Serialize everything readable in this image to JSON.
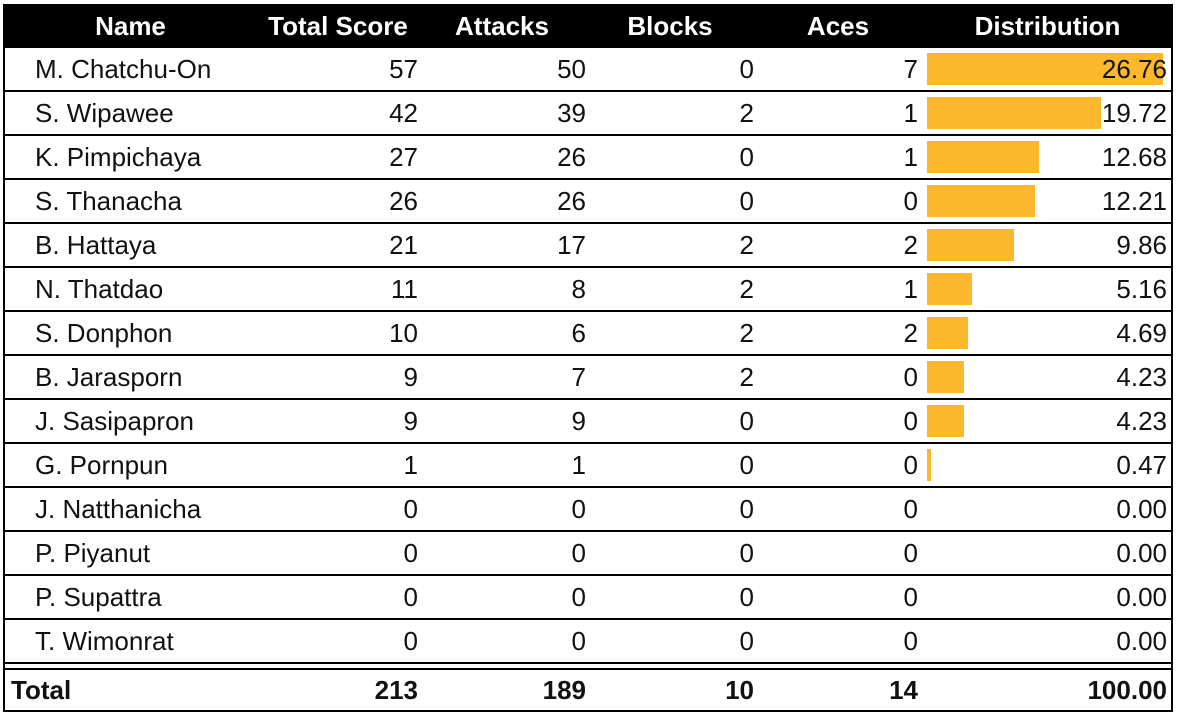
{
  "headers": {
    "name": "Name",
    "total": "Total Score",
    "attacks": "Attacks",
    "blocks": "Blocks",
    "aces": "Aces",
    "distribution": "Distribution"
  },
  "chart_data": {
    "type": "table",
    "bar_color": "#fbb82c",
    "bar_max": 27,
    "rows": [
      {
        "name": "M. Chatchu-On",
        "total": "57",
        "attacks": "50",
        "blocks": "0",
        "aces": "7",
        "distribution": "26.76"
      },
      {
        "name": "S. Wipawee",
        "total": "42",
        "attacks": "39",
        "blocks": "2",
        "aces": "1",
        "distribution": "19.72"
      },
      {
        "name": "K. Pimpichaya",
        "total": "27",
        "attacks": "26",
        "blocks": "0",
        "aces": "1",
        "distribution": "12.68"
      },
      {
        "name": "S. Thanacha",
        "total": "26",
        "attacks": "26",
        "blocks": "0",
        "aces": "0",
        "distribution": "12.21"
      },
      {
        "name": "B. Hattaya",
        "total": "21",
        "attacks": "17",
        "blocks": "2",
        "aces": "2",
        "distribution": "9.86"
      },
      {
        "name": "N. Thatdao",
        "total": "11",
        "attacks": "8",
        "blocks": "2",
        "aces": "1",
        "distribution": "5.16"
      },
      {
        "name": "S. Donphon",
        "total": "10",
        "attacks": "6",
        "blocks": "2",
        "aces": "2",
        "distribution": "4.69"
      },
      {
        "name": "B. Jarasporn",
        "total": "9",
        "attacks": "7",
        "blocks": "2",
        "aces": "0",
        "distribution": "4.23"
      },
      {
        "name": "J. Sasipapron",
        "total": "9",
        "attacks": "9",
        "blocks": "0",
        "aces": "0",
        "distribution": "4.23"
      },
      {
        "name": "G. Pornpun",
        "total": "1",
        "attacks": "1",
        "blocks": "0",
        "aces": "0",
        "distribution": "0.47"
      },
      {
        "name": "J. Natthanicha",
        "total": "0",
        "attacks": "0",
        "blocks": "0",
        "aces": "0",
        "distribution": "0.00"
      },
      {
        "name": "P. Piyanut",
        "total": "0",
        "attacks": "0",
        "blocks": "0",
        "aces": "0",
        "distribution": "0.00"
      },
      {
        "name": "P. Supattra",
        "total": "0",
        "attacks": "0",
        "blocks": "0",
        "aces": "0",
        "distribution": "0.00"
      },
      {
        "name": "T. Wimonrat",
        "total": "0",
        "attacks": "0",
        "blocks": "0",
        "aces": "0",
        "distribution": "0.00"
      }
    ],
    "totals": {
      "name": "Total",
      "total": "213",
      "attacks": "189",
      "blocks": "10",
      "aces": "14",
      "distribution": "100.00"
    }
  }
}
